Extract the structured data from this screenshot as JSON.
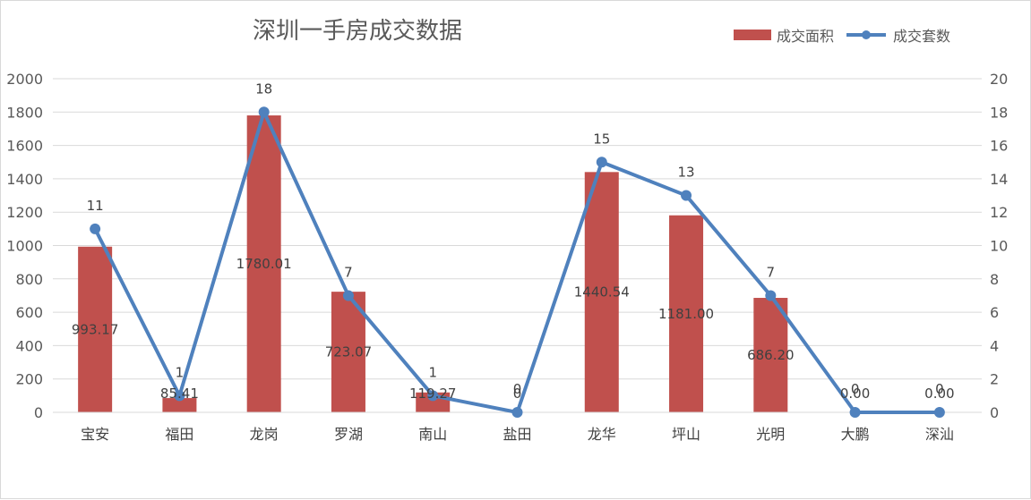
{
  "chart_data": {
    "type": "bar+line",
    "title": "深圳一手房成交数据",
    "categories": [
      "宝安",
      "福田",
      "龙岗",
      "罗湖",
      "南山",
      "盐田",
      "龙华",
      "坪山",
      "光明",
      "大鹏",
      "深汕"
    ],
    "series": [
      {
        "name": "成交面积",
        "type": "bar",
        "axis": "left",
        "color": "#c0504d",
        "values": [
          993.17,
          85.41,
          1780.01,
          723.07,
          119.27,
          0,
          1440.54,
          1181.0,
          686.2,
          0,
          0
        ],
        "labels": [
          "993.17",
          "85.41",
          "1780.01",
          "723.07",
          "119.27",
          "0",
          "1440.54",
          "1181.00",
          "686.20",
          "0.00",
          "0.00"
        ]
      },
      {
        "name": "成交套数",
        "type": "line",
        "axis": "right",
        "color": "#4f81bd",
        "values": [
          11,
          1,
          18,
          7,
          1,
          0,
          15,
          13,
          7,
          0,
          0
        ],
        "labels": [
          "11",
          "1",
          "18",
          "7",
          "1",
          "0",
          "15",
          "13",
          "7",
          "0",
          "0"
        ]
      }
    ],
    "y_left": {
      "lim": [
        0,
        2000
      ],
      "ticks": [
        "0",
        "200",
        "400",
        "600",
        "800",
        "1000",
        "1200",
        "1400",
        "1600",
        "1800",
        "2000"
      ]
    },
    "y_right": {
      "lim": [
        0,
        20
      ],
      "ticks": [
        "0",
        "2",
        "4",
        "6",
        "8",
        "10",
        "12",
        "14",
        "16",
        "18",
        "20"
      ]
    },
    "grid": true,
    "legend": "top-right"
  }
}
